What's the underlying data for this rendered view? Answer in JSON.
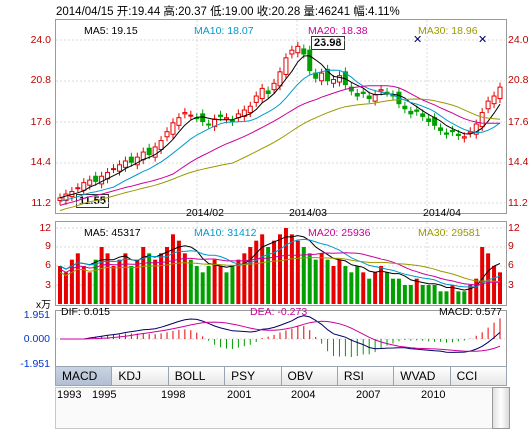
{
  "header": {
    "text": "2014/04/15 开:19.44  高:20.37  低:19.00  收:20.28  量:46241  幅:4.11%"
  },
  "main": {
    "y_left": [
      "24.0",
      "20.8",
      "17.6",
      "14.4",
      "11.2"
    ],
    "y_right": [
      "24.0",
      "20.8",
      "17.6",
      "14.4",
      "11.2"
    ],
    "x_labels": [
      "2014/02",
      "2014/03",
      "2014/04"
    ],
    "legend": [
      {
        "label": "MA5: 19.15",
        "color": "#000000"
      },
      {
        "label": "MA10: 18.07",
        "color": "#0099cc"
      },
      {
        "label": "MA20: 18.38",
        "color": "#cc0099"
      },
      {
        "label": "MA30: 18.96",
        "color": "#999900"
      }
    ],
    "high_label": "23.98",
    "low_label": "11.55"
  },
  "volume": {
    "y_left": [
      "12",
      "9",
      "6",
      "3"
    ],
    "y_right": [
      "12",
      "9",
      "6",
      "3"
    ],
    "unit": "x万",
    "legend": [
      {
        "label": "MA5: 45317",
        "color": "#000000"
      },
      {
        "label": "MA10: 31412",
        "color": "#0099cc"
      },
      {
        "label": "MA20: 25936",
        "color": "#cc0099"
      },
      {
        "label": "MA30: 29581",
        "color": "#999900"
      }
    ]
  },
  "macd": {
    "y_left": [
      "1.951",
      "0.000",
      "-1.951"
    ],
    "legend": [
      {
        "label": "DIF: 0.015",
        "color": "#000000"
      },
      {
        "label": "DEA: -0.273",
        "color": "#cc0099"
      },
      {
        "label": "MACD: 0.577",
        "color": "#000000"
      }
    ]
  },
  "tabs": [
    "MACD",
    "KDJ",
    "BOLL",
    "PSY",
    "OBV",
    "RSI",
    "WVAD",
    "CCI"
  ],
  "nav_years": [
    "1993",
    "1995",
    "1998",
    "2001",
    "2004",
    "2007",
    "2010"
  ],
  "colors": {
    "up": "#e60000",
    "down": "#00a000",
    "axis": "#c00000",
    "grid": "#cccccc"
  }
}
